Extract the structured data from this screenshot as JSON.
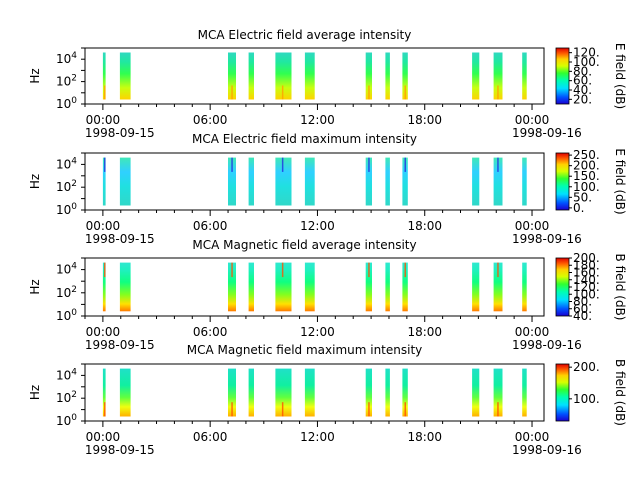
{
  "figure": {
    "panels": [
      {
        "title": "MCA  Electric field average intensity",
        "ylabel": "Hz",
        "cbar_label": "E field (dB)",
        "cbar_ticks": [
          "20.",
          "40.",
          "60.",
          "80.",
          "100.",
          "120."
        ],
        "cbar_range": [
          10,
          130
        ],
        "yticks": [
          "10^4",
          "10^2",
          "10^0"
        ],
        "xticks": [
          "00:00",
          "06:00",
          "12:00",
          "18:00",
          "00:00"
        ],
        "start_date": "1998-09-15",
        "end_date": "1998-09-16"
      },
      {
        "title": "MCA  Electric field maximum intensity",
        "ylabel": "Hz",
        "cbar_label": "E field (dB)",
        "cbar_ticks": [
          "0.",
          "50.",
          "100.",
          "150.",
          "200.",
          "250."
        ],
        "cbar_range": [
          -10,
          260
        ],
        "yticks": [
          "10^4",
          "10^2",
          "10^0"
        ],
        "xticks": [
          "00:00",
          "06:00",
          "12:00",
          "18:00",
          "00:00"
        ],
        "start_date": "1998-09-15",
        "end_date": "1998-09-16"
      },
      {
        "title": "MCA  Magnetic field average intensity",
        "ylabel": "Hz",
        "cbar_label": "B field (dB)",
        "cbar_ticks": [
          "40.",
          "60.",
          "80.",
          "100.",
          "120.",
          "140.",
          "160.",
          "180.",
          "200."
        ],
        "cbar_range": [
          40,
          200
        ],
        "yticks": [
          "10^4",
          "10^2",
          "10^0"
        ],
        "xticks": [
          "00:00",
          "06:00",
          "12:00",
          "18:00",
          "00:00"
        ],
        "start_date": "1998-09-15",
        "end_date": "1998-09-16"
      },
      {
        "title": "MCA  Magnetic field maximum intensity",
        "ylabel": "Hz",
        "cbar_label": "B field (dB)",
        "cbar_ticks": [
          "100.",
          "200."
        ],
        "cbar_range": [
          30,
          210
        ],
        "yticks": [
          "10^4",
          "10^2",
          "10^0"
        ],
        "xticks": [
          "00:00",
          "06:00",
          "12:00",
          "18:00",
          "00:00"
        ],
        "start_date": "1998-09-15",
        "end_date": "1998-09-16"
      }
    ]
  },
  "chart_data": [
    {
      "type": "heatmap",
      "title": "MCA  Electric field average intensity",
      "xlabel": "",
      "ylabel": "Hz",
      "y_scale": "log",
      "ylim": [
        1,
        100000
      ],
      "xlim": [
        "1998-09-14 23:00",
        "1998-09-16 00:40"
      ],
      "colorbar": {
        "label": "E field (dB)",
        "range": [
          10,
          130
        ]
      },
      "data_intervals_hours": [
        [
          0.0,
          0.15
        ],
        [
          0.95,
          1.55
        ],
        [
          7.0,
          7.45
        ],
        [
          8.15,
          8.45
        ],
        [
          9.65,
          10.55
        ],
        [
          11.3,
          11.85
        ],
        [
          14.7,
          15.05
        ],
        [
          15.8,
          16.05
        ],
        [
          16.75,
          17.05
        ],
        [
          20.65,
          21.05
        ],
        [
          21.85,
          22.35
        ],
        [
          23.45,
          23.7
        ]
      ],
      "grid": false
    },
    {
      "type": "heatmap",
      "title": "MCA  Electric field maximum intensity",
      "xlabel": "",
      "ylabel": "Hz",
      "y_scale": "log",
      "ylim": [
        1,
        100000
      ],
      "xlim": [
        "1998-09-14 23:00",
        "1998-09-16 00:40"
      ],
      "colorbar": {
        "label": "E field (dB)",
        "range": [
          -10,
          260
        ]
      },
      "data_intervals_hours": [
        [
          0.0,
          0.15
        ],
        [
          0.95,
          1.55
        ],
        [
          7.0,
          7.45
        ],
        [
          8.15,
          8.45
        ],
        [
          9.65,
          10.55
        ],
        [
          11.3,
          11.85
        ],
        [
          14.7,
          15.05
        ],
        [
          15.8,
          16.05
        ],
        [
          16.75,
          17.05
        ],
        [
          20.65,
          21.05
        ],
        [
          21.85,
          22.35
        ],
        [
          23.45,
          23.7
        ]
      ],
      "grid": false
    },
    {
      "type": "heatmap",
      "title": "MCA  Magnetic field average intensity",
      "xlabel": "",
      "ylabel": "Hz",
      "y_scale": "log",
      "ylim": [
        1,
        100000
      ],
      "xlim": [
        "1998-09-14 23:00",
        "1998-09-16 00:40"
      ],
      "colorbar": {
        "label": "B field (dB)",
        "range": [
          40,
          200
        ]
      },
      "data_intervals_hours": [
        [
          0.0,
          0.15
        ],
        [
          0.95,
          1.55
        ],
        [
          7.0,
          7.45
        ],
        [
          8.15,
          8.45
        ],
        [
          9.65,
          10.55
        ],
        [
          11.3,
          11.85
        ],
        [
          14.7,
          15.05
        ],
        [
          15.8,
          16.05
        ],
        [
          16.75,
          17.05
        ],
        [
          20.65,
          21.05
        ],
        [
          21.85,
          22.35
        ],
        [
          23.45,
          23.7
        ]
      ],
      "grid": false
    },
    {
      "type": "heatmap",
      "title": "MCA  Magnetic field maximum intensity",
      "xlabel": "",
      "ylabel": "Hz",
      "y_scale": "log",
      "ylim": [
        1,
        100000
      ],
      "xlim": [
        "1998-09-14 23:00",
        "1998-09-16 00:40"
      ],
      "colorbar": {
        "label": "B field (dB)",
        "range": [
          30,
          210
        ]
      },
      "data_intervals_hours": [
        [
          0.0,
          0.15
        ],
        [
          0.95,
          1.55
        ],
        [
          7.0,
          7.45
        ],
        [
          8.15,
          8.45
        ],
        [
          9.65,
          10.55
        ],
        [
          11.3,
          11.85
        ],
        [
          14.7,
          15.05
        ],
        [
          15.8,
          16.05
        ],
        [
          16.75,
          17.05
        ],
        [
          20.65,
          21.05
        ],
        [
          21.85,
          22.35
        ],
        [
          23.45,
          23.7
        ]
      ],
      "grid": false
    }
  ]
}
